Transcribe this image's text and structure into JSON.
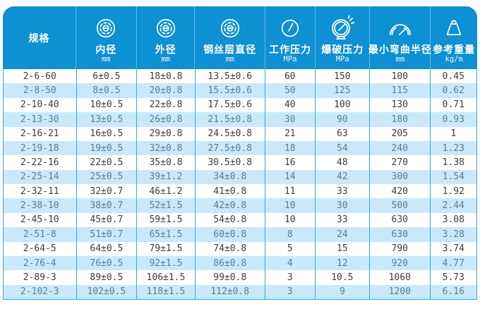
{
  "colors": {
    "header_blue": "#0e90d2",
    "row_alt_blue": "#c9e9fb",
    "border_blue": "#36a7dc",
    "text_dark": "#3d3d3d",
    "text_on_blue": "#5b7e91",
    "header_text": "#ffffff"
  },
  "table": {
    "columns": [
      {
        "name": "spec",
        "label": "规格",
        "unit": "",
        "icon": ""
      },
      {
        "name": "inner-diameter",
        "label": "内径",
        "unit": "mm",
        "icon": "hose-cross-section-icon"
      },
      {
        "name": "outer-diameter",
        "label": "外径",
        "unit": "mm",
        "icon": "hose-cross-section-icon"
      },
      {
        "name": "wire-layer-diameter",
        "label": "钢丝层直径",
        "unit": "mm",
        "icon": "hose-cross-section-icon"
      },
      {
        "name": "working-pressure",
        "label": "工作压力",
        "unit": "MPa",
        "icon": "pressure-gauge-icon"
      },
      {
        "name": "burst-pressure",
        "label": "爆破压力",
        "unit": "MPa",
        "icon": "burst-gauge-icon"
      },
      {
        "name": "min-bend-radius",
        "label": "最小弯曲半径",
        "unit": "mm",
        "icon": "bend-radius-icon"
      },
      {
        "name": "reference-weight",
        "label": "参考重量",
        "unit": "kg/m",
        "icon": "weight-icon"
      }
    ],
    "rows": [
      [
        "2-6-60",
        "6±0.5",
        "18±0.8",
        "13.5±0.6",
        "60",
        "150",
        "100",
        "0.45"
      ],
      [
        "2-8-50",
        "8±0.5",
        "20±0.8",
        "15.5±0.6",
        "50",
        "125",
        "115",
        "0.62"
      ],
      [
        "2-10-40",
        "10±0.5",
        "22±0.8",
        "17.5±0.6",
        "40",
        "100",
        "130",
        "0.71"
      ],
      [
        "2-13-30",
        "13±0.5",
        "26±0.8",
        "21.5±0.8",
        "30",
        "90",
        "180",
        "0.93"
      ],
      [
        "2-16-21",
        "16±0.5",
        "29±0.8",
        "24.5±0.8",
        "21",
        "63",
        "205",
        "1"
      ],
      [
        "2-19-18",
        "19±0.5",
        "32±0.8",
        "27.5±0.8",
        "18",
        "54",
        "240",
        "1.23"
      ],
      [
        "2-22-16",
        "22±0.5",
        "35±0.8",
        "30.5±0.8",
        "16",
        "48",
        "270",
        "1.38"
      ],
      [
        "2-25-14",
        "25±0.5",
        "39±1.2",
        "34±0.8",
        "14",
        "42",
        "300",
        "1.54"
      ],
      [
        "2-32-11",
        "32±0.7",
        "46±1.2",
        "41±0.8",
        "11",
        "33",
        "420",
        "1.92"
      ],
      [
        "2-38-10",
        "38±0.7",
        "52±1.5",
        "42±0.8",
        "10",
        "30",
        "500",
        "2.44"
      ],
      [
        "2-45-10",
        "45±0.7",
        "59±1.5",
        "54±0.8",
        "10",
        "33",
        "630",
        "3.08"
      ],
      [
        "2-51-8",
        "51±0.7",
        "65±1.5",
        "60±0.8",
        "8",
        "24",
        "630",
        "3.28"
      ],
      [
        "2-64-5",
        "64±0.5",
        "79±1.5",
        "74±0.8",
        "5",
        "15",
        "790",
        "3.74"
      ],
      [
        "2-76-4",
        "76±0.5",
        "92±1.5",
        "86±0.8",
        "4",
        "12",
        "920",
        "4.77"
      ],
      [
        "2-89-3",
        "89±0.5",
        "106±1.5",
        "99±0.8",
        "3",
        "10.5",
        "1060",
        "5.73"
      ],
      [
        "2-102-3",
        "102±0.5",
        "118±1.5",
        "112±0.8",
        "3",
        "9",
        "1200",
        "6.16"
      ]
    ]
  }
}
